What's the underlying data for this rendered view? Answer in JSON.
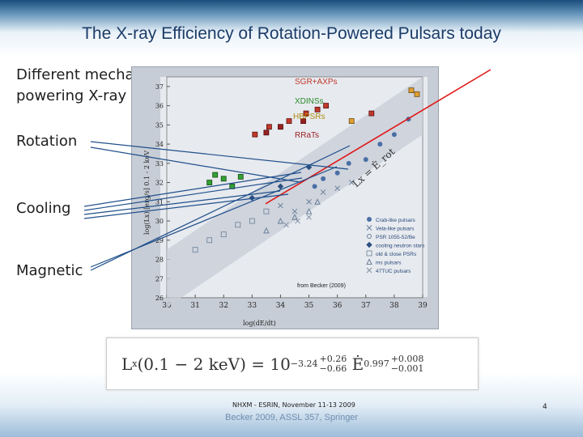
{
  "slide": {
    "title": "The X-ray Efficiency of Rotation-Powered Pulsars today",
    "labels": {
      "mechanisms": "Different mechanisms powering X-ray emission",
      "rotation": "Rotation",
      "cooling": "Cooling",
      "magnetic": "Magnetic"
    },
    "footer": "NHXM - ESRIN, November 11-13 2009",
    "citation": "Becker 2009, ASSL 357, Springer",
    "page_number": "4"
  },
  "formula": {
    "lhs": "L",
    "lhs_sub": "x",
    "lhs_arg": "(0.1 − 2 keV) = 10",
    "exp_base": "−3.24",
    "exp_upper": "+0.26",
    "exp_lower": "−0.66",
    "edot": "Ė",
    "pow_base": "0.997",
    "pow_upper": "+0.008",
    "pow_lower": "−0.001"
  },
  "colors": {
    "title": "#1c3c68",
    "fit_line": "#e01818",
    "pointer_lines": "#1f4f8a",
    "sgr": "#c0392b",
    "xdins": "#2a8a2a",
    "hbpsrs": "#b08a10",
    "rrats": "#9a2020"
  },
  "chart_data": {
    "type": "scatter",
    "title": "",
    "xlabel": "log(dE/dt)",
    "ylabel": "log(Lx) [erg/s] 0.1 - 2 keV",
    "xlim": [
      30,
      39
    ],
    "ylim": [
      26,
      37.5
    ],
    "x_ticks": [
      30,
      31,
      32,
      33,
      34,
      35,
      36,
      37,
      38,
      39
    ],
    "y_ticks": [
      26,
      27,
      28,
      29,
      30,
      31,
      32,
      33,
      34,
      35,
      36,
      37
    ],
    "fit_label": "Lx = Ė_rot",
    "source_note": "from Becker (2009)",
    "legend_placement": "lower-right",
    "legend": [
      "Crab-like pulsars",
      "Vela-like pulsars",
      "PSR 1055-52/Be",
      "cooling neutron stars",
      "old & close PSRs",
      "ms pulsars",
      "47TUC pulsars"
    ],
    "categories_annotated": [
      {
        "name": "SGR+AXPs",
        "color": "#c0392b"
      },
      {
        "name": "XDINSs",
        "color": "#2a8a2a"
      },
      {
        "name": "HBPSRs",
        "color": "#b08a10"
      },
      {
        "name": "RRaTs",
        "color": "#9a2020"
      }
    ],
    "series": [
      {
        "name": "Crab-like pulsars",
        "points": [
          [
            35.2,
            31.8
          ],
          [
            35.5,
            32.2
          ],
          [
            36.0,
            32.5
          ],
          [
            36.4,
            33.0
          ],
          [
            37.0,
            33.2
          ],
          [
            37.5,
            34.0
          ],
          [
            38.0,
            34.5
          ],
          [
            38.5,
            35.3
          ]
        ]
      },
      {
        "name": "Vela-like pulsars",
        "points": [
          [
            34.5,
            30.5
          ],
          [
            35.0,
            31.0
          ],
          [
            35.5,
            31.5
          ],
          [
            36.0,
            31.7
          ],
          [
            36.5,
            32.0
          ],
          [
            34.0,
            30.8
          ]
        ]
      },
      {
        "name": "old & close PSRs",
        "points": [
          [
            31.5,
            29.0
          ],
          [
            32.0,
            29.3
          ],
          [
            32.5,
            29.8
          ],
          [
            33.0,
            30.0
          ],
          [
            33.5,
            30.5
          ],
          [
            31.0,
            28.5
          ]
        ]
      },
      {
        "name": "ms pulsars",
        "points": [
          [
            33.5,
            29.5
          ],
          [
            34.0,
            30.0
          ],
          [
            34.5,
            30.2
          ],
          [
            35.0,
            30.5
          ],
          [
            35.3,
            31.0
          ]
        ]
      },
      {
        "name": "cooling neutron stars",
        "points": [
          [
            33.0,
            31.2
          ],
          [
            34.0,
            31.8
          ],
          [
            35.0,
            32.8
          ]
        ]
      },
      {
        "name": "47TUC pulsars",
        "points": [
          [
            34.2,
            29.8
          ],
          [
            34.6,
            30.0
          ],
          [
            35.0,
            30.2
          ]
        ]
      },
      {
        "name": "SGR+AXPs",
        "points": [
          [
            33.1,
            34.5
          ],
          [
            33.6,
            34.9
          ],
          [
            34.3,
            35.2
          ],
          [
            34.9,
            35.6
          ],
          [
            35.3,
            35.8
          ],
          [
            35.6,
            36.0
          ],
          [
            37.2,
            35.6
          ]
        ]
      },
      {
        "name": "XDINSs",
        "points": [
          [
            31.5,
            32.0
          ],
          [
            31.7,
            32.4
          ],
          [
            32.0,
            32.2
          ],
          [
            32.3,
            31.8
          ],
          [
            32.6,
            32.3
          ]
        ]
      },
      {
        "name": "HBPSRs",
        "points": [
          [
            36.5,
            35.2
          ],
          [
            38.6,
            36.8
          ],
          [
            38.8,
            36.6
          ]
        ]
      },
      {
        "name": "RRaTs",
        "points": [
          [
            33.5,
            34.6
          ],
          [
            34.0,
            34.9
          ],
          [
            34.8,
            35.2
          ]
        ]
      }
    ],
    "fit_line": {
      "x": [
        30,
        39
      ],
      "y": [
        26.6,
        35.6
      ]
    }
  }
}
